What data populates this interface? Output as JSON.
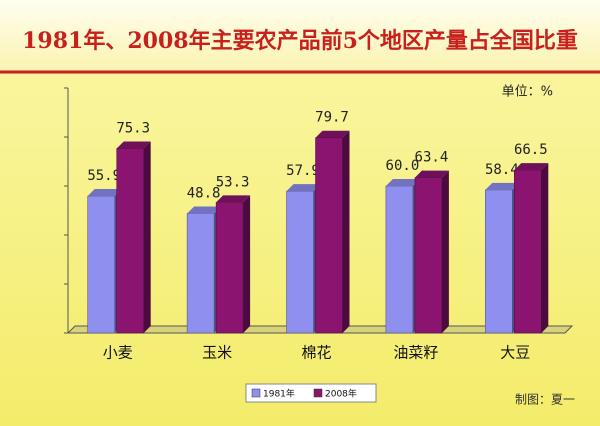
{
  "chart_data": {
    "type": "bar3d",
    "title": "1981年、2008年主要农产品前5个地区产量占全国比重",
    "unit": "单位：%",
    "credit": "制图：夏一",
    "categories": [
      "小麦",
      "玉米",
      "棉花",
      "油菜籽",
      "大豆"
    ],
    "series": [
      {
        "name": "1981年",
        "color": "#8f8ff0",
        "values": [
          55.9,
          48.8,
          57.9,
          60.0,
          58.4
        ],
        "value_labels": [
          "55.9",
          "48.8",
          "57.9",
          "60.0",
          "58.4"
        ]
      },
      {
        "name": "2008年",
        "color": "#8a1470",
        "values": [
          75.3,
          53.3,
          79.7,
          63.4,
          66.5
        ]
      }
    ],
    "ylim": [
      0,
      100
    ],
    "yticks": [
      0,
      20,
      40,
      60,
      80,
      100
    ]
  }
}
